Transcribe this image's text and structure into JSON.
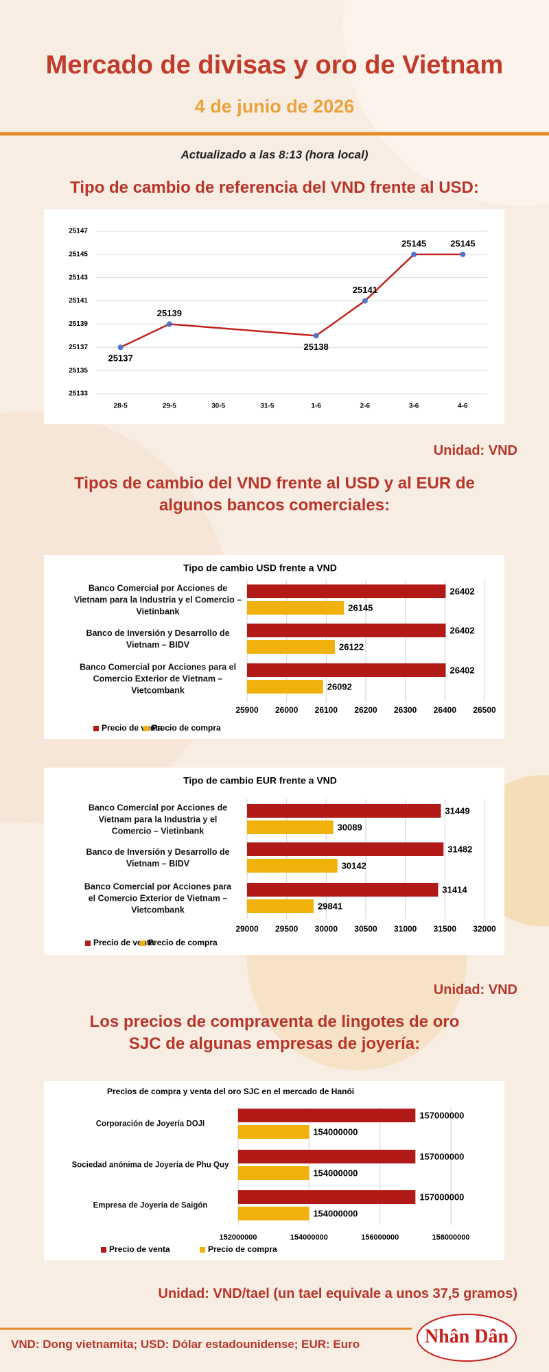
{
  "header": {
    "title": "Mercado de divisas y oro de Vietnam",
    "date": "4 de junio de 2026",
    "updated": "Actualizado a las 8:13 (hora local)"
  },
  "sections": [
    {
      "title": "Tipo de cambio de referencia del VND frente al USD:",
      "unit": "Unidad: VND"
    },
    {
      "title": "Tipos de cambio del VND frente al USD y al EUR de algunos bancos comerciales:",
      "unit": "Unidad: VND"
    },
    {
      "title": "Los precios de compraventa de lingotes de oro SJC de algunas empresas de joyería:",
      "unit": "Unidad: VND/tael (un tael equivale a unos 37,5 gramos)"
    }
  ],
  "chart_data": [
    {
      "type": "line",
      "categories": [
        "28-5",
        "29-5",
        "30-5",
        "31-5",
        "1-6",
        "2-6",
        "3-6",
        "4-6"
      ],
      "values": [
        25137,
        25139,
        null,
        null,
        25138,
        25141,
        25145,
        25145
      ],
      "color": "#c0231d",
      "marker_color": "#4f74c8",
      "ylim": [
        25133,
        25147
      ],
      "yticks": [
        25133,
        25135,
        25137,
        25139,
        25141,
        25143,
        25145,
        25147
      ],
      "grid": true
    },
    {
      "type": "hbar",
      "title": "Tipo de cambio USD frente a VND",
      "categories": [
        "Banco Comercial por Acciones de Vietnam para la Industria y el Comercio – Vietinbank",
        "Banco de Inversión y Desarrollo de Vietnam – BIDV",
        "Banco Comercial por Acciones para el Comercio Exterior de Vietnam – Vietcombank"
      ],
      "series": [
        {
          "name": "Precio de venta",
          "color": "#b11a17",
          "values": [
            26402,
            26402,
            26402
          ]
        },
        {
          "name": "Precio de compra",
          "color": "#f0b20a",
          "values": [
            26145,
            26122,
            26092
          ]
        }
      ],
      "xlim": [
        25900,
        26500
      ],
      "xticks": [
        25900,
        26000,
        26100,
        26200,
        26300,
        26400,
        26500
      ],
      "grid": true
    },
    {
      "type": "hbar",
      "title": "Tipo de cambio EUR frente a VND",
      "categories": [
        "Banco Comercial por Acciones de Vietnam para la Industria y el Comercio – Vietinbank",
        "Banco de Inversión y Desarrollo de Vietnam – BIDV",
        "Banco Comercial por Acciones para el Comercio Exterior de Vietnam – Vietcombank"
      ],
      "series": [
        {
          "name": "Precio de venta",
          "color": "#b11a17",
          "values": [
            31449,
            31482,
            31414
          ]
        },
        {
          "name": "Precio de compra",
          "color": "#f0b20a",
          "values": [
            30089,
            30142,
            29841
          ]
        }
      ],
      "xlim": [
        29000,
        32000
      ],
      "xticks": [
        29000,
        29500,
        30000,
        30500,
        31000,
        31500,
        32000
      ],
      "grid": true
    },
    {
      "type": "hbar",
      "title": "Precios de compra y venta del oro SJC en el mercado de Hanói",
      "categories": [
        "Corporación de Joyería DOJI",
        "Sociedad anónima de Joyería de Phu Quy",
        "Empresa de Joyería de Saigón"
      ],
      "series": [
        {
          "name": "Precio de venta",
          "color": "#b11a17",
          "values": [
            157000000,
            157000000,
            157000000
          ]
        },
        {
          "name": "Precio de compra",
          "color": "#f0b20a",
          "values": [
            154000000,
            154000000,
            154000000
          ]
        }
      ],
      "xlim": [
        152000000,
        158000000
      ],
      "xticks": [
        152000000,
        154000000,
        156000000,
        158000000
      ],
      "grid": true
    }
  ],
  "footer": {
    "note": "VND: Dong vietnamita; USD: Dólar estadounidense; EUR: Euro",
    "logo": "Nhân Dân"
  }
}
